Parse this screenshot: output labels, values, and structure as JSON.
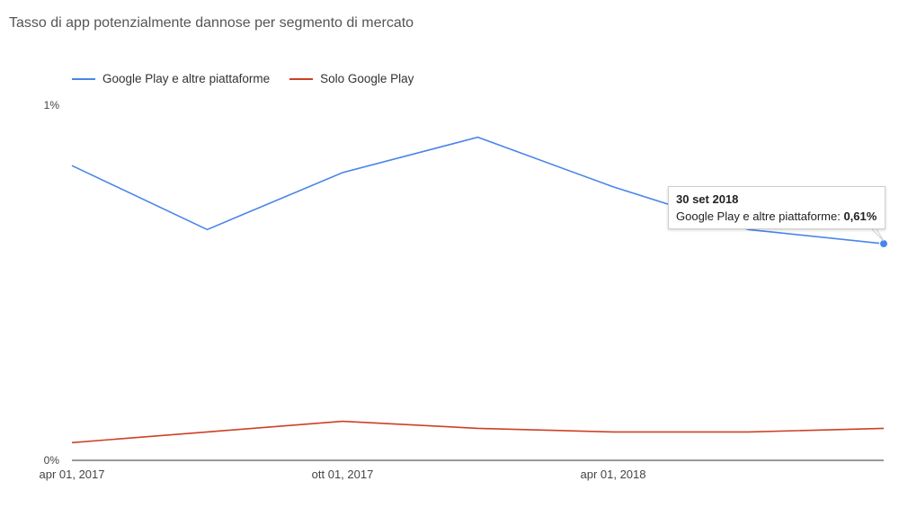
{
  "chart_data": {
    "type": "line",
    "title": "Tasso di app potenzialmente dannose per segmento di mercato",
    "xlabel": "",
    "ylabel": "",
    "x": [
      "2017-03-31",
      "2017-06-30",
      "2017-09-30",
      "2017-12-31",
      "2018-03-31",
      "2018-06-30",
      "2018-09-30"
    ],
    "x_ticks": [
      "apr 01, 2017",
      "ott 01, 2017",
      "apr 01, 2018"
    ],
    "y_ticks": [
      "1%",
      "0%"
    ],
    "ylim": [
      0,
      1
    ],
    "legend_position": "top-left",
    "grid": false,
    "series": [
      {
        "name": "Google Play e altre piattaforme",
        "color": "#4a86e8",
        "values": [
          0.83,
          0.65,
          0.81,
          0.91,
          0.77,
          0.65,
          0.61
        ]
      },
      {
        "name": "Solo Google Play",
        "color": "#cc4125",
        "values": [
          0.05,
          0.08,
          0.11,
          0.09,
          0.08,
          0.08,
          0.09
        ]
      }
    ],
    "tooltip": {
      "date": "30 set 2018",
      "series_label": "Google Play e altre piattaforme: ",
      "value": "0,61%"
    }
  }
}
